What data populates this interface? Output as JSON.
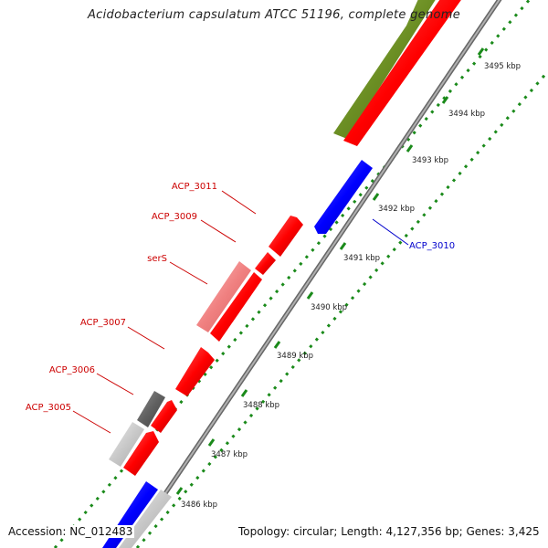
{
  "title": "Acidobacterium capsulatum ATCC 51196, complete genome",
  "footer": {
    "accession": "Accession: NC_012483",
    "stats": "Topology: circular; Length: 4,127,356 bp; Genes: 3,425"
  },
  "scale_labels": [
    "3486 kbp",
    "3487 kbp",
    "3488 kbp",
    "3489 kbp",
    "3490 kbp",
    "3491 kbp",
    "3492 kbp",
    "3493 kbp",
    "3494 kbp",
    "3495 kbp"
  ],
  "gene_labels": [
    {
      "id": "acp-3011",
      "text": "ACP_3011",
      "color": "#cc0000"
    },
    {
      "id": "acp-3009",
      "text": "ACP_3009",
      "color": "#cc0000"
    },
    {
      "id": "sers",
      "text": "serS",
      "color": "#cc0000"
    },
    {
      "id": "acp-3007",
      "text": "ACP_3007",
      "color": "#cc0000"
    },
    {
      "id": "acp-3006",
      "text": "ACP_3006",
      "color": "#cc0000"
    },
    {
      "id": "acp-3005",
      "text": "ACP_3005",
      "color": "#cc0000"
    },
    {
      "id": "acp-3010",
      "text": "ACP_3010",
      "color": "#0000cc"
    }
  ],
  "colors": {
    "forward_cds": "#ff0000",
    "reverse_cds": "#0000ff",
    "rna": "#f08080",
    "olive_track": "#6b8e23",
    "light_gray": "#c8c8c8",
    "dark_gray": "#606060",
    "dotted_ring": "#1a8a1a",
    "backbone": "#8c8c8c"
  }
}
